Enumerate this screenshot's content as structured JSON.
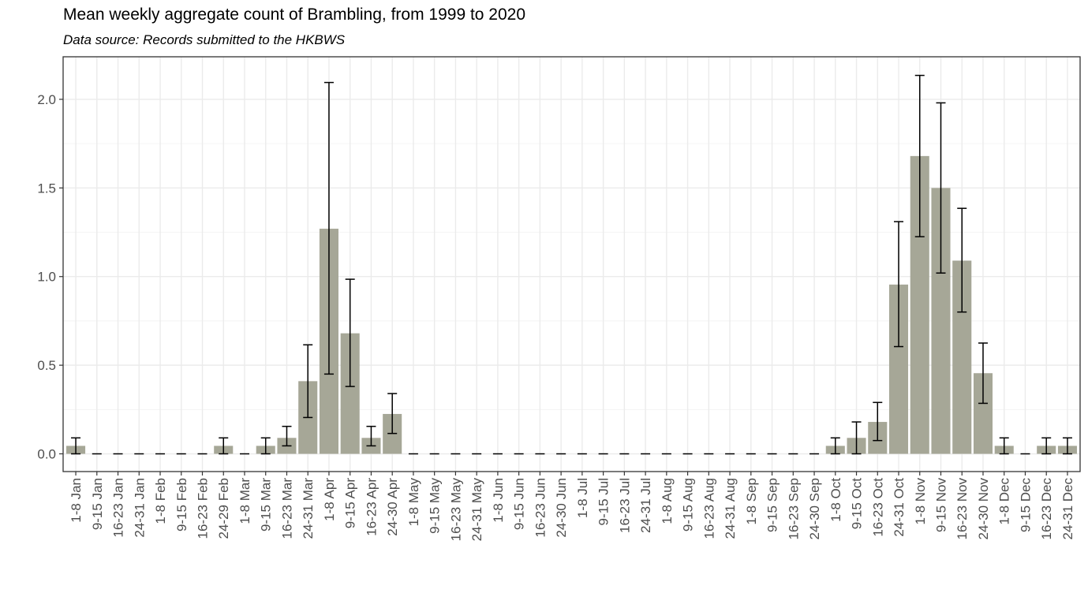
{
  "chart_data": {
    "type": "bar",
    "title": "Mean weekly aggregate count of Brambling, from 1999 to 2020",
    "subtitle": "Data source: Records submitted to the HKBWS",
    "xlabel": "",
    "ylabel": "",
    "ylim": [
      -0.1,
      2.24
    ],
    "yticks": [
      0.0,
      0.5,
      1.0,
      1.5,
      2.0
    ],
    "ytick_labels": [
      "0.0",
      "0.5",
      "1.0",
      "1.5",
      "2.0"
    ],
    "grid": true,
    "bar_color": "#a6a797",
    "categories": [
      "1-8 Jan",
      "9-15 Jan",
      "16-23 Jan",
      "24-31 Jan",
      "1-8 Feb",
      "9-15 Feb",
      "16-23 Feb",
      "24-29 Feb",
      "1-8 Mar",
      "9-15 Mar",
      "16-23 Mar",
      "24-31 Mar",
      "1-8 Apr",
      "9-15 Apr",
      "16-23 Apr",
      "24-30 Apr",
      "1-8 May",
      "9-15 May",
      "16-23 May",
      "24-31 May",
      "1-8 Jun",
      "9-15 Jun",
      "16-23 Jun",
      "24-30 Jun",
      "1-8 Jul",
      "9-15 Jul",
      "16-23 Jul",
      "24-31 Jul",
      "1-8 Aug",
      "9-15 Aug",
      "16-23 Aug",
      "24-31 Aug",
      "1-8 Sep",
      "9-15 Sep",
      "16-23 Sep",
      "24-30 Sep",
      "1-8 Oct",
      "9-15 Oct",
      "16-23 Oct",
      "24-31 Oct",
      "1-8 Nov",
      "9-15 Nov",
      "16-23 Nov",
      "24-30 Nov",
      "1-8 Dec",
      "9-15 Dec",
      "16-23 Dec",
      "24-31 Dec"
    ],
    "values": [
      0.045,
      0,
      0,
      0,
      0,
      0,
      0,
      0.045,
      0,
      0.045,
      0.09,
      0.41,
      1.27,
      0.68,
      0.09,
      0.225,
      0,
      0,
      0,
      0,
      0,
      0,
      0,
      0,
      0,
      0,
      0,
      0,
      0,
      0,
      0,
      0,
      0,
      0,
      0,
      0,
      0.045,
      0.09,
      0.18,
      0.955,
      1.68,
      1.5,
      1.09,
      0.455,
      0.045,
      0,
      0.045,
      0.045
    ],
    "error_low": [
      0,
      0,
      0,
      0,
      0,
      0,
      0,
      0,
      0,
      0,
      0.045,
      0.205,
      0.45,
      0.38,
      0.045,
      0.115,
      0,
      0,
      0,
      0,
      0,
      0,
      0,
      0,
      0,
      0,
      0,
      0,
      0,
      0,
      0,
      0,
      0,
      0,
      0,
      0,
      0,
      0,
      0.075,
      0.605,
      1.225,
      1.02,
      0.8,
      0.285,
      0,
      0,
      0,
      0
    ],
    "error_high": [
      0.09,
      0,
      0,
      0,
      0,
      0,
      0,
      0.09,
      0,
      0.09,
      0.155,
      0.615,
      2.095,
      0.985,
      0.155,
      0.34,
      0,
      0,
      0,
      0,
      0,
      0,
      0,
      0,
      0,
      0,
      0,
      0,
      0,
      0,
      0,
      0,
      0,
      0,
      0,
      0,
      0.09,
      0.18,
      0.29,
      1.31,
      2.135,
      1.98,
      1.385,
      0.625,
      0.09,
      0,
      0.09,
      0.09
    ]
  }
}
